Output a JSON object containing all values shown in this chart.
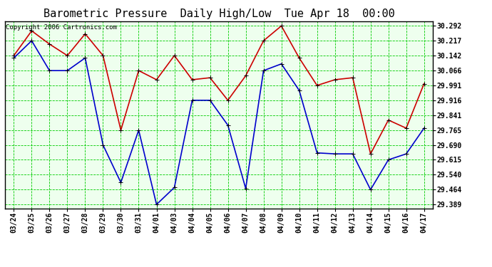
{
  "title": "Barometric Pressure  Daily High/Low  Tue Apr 18  00:00",
  "copyright": "Copyright 2006 Cartronics.com",
  "background_color": "#ffffff",
  "plot_bg_color": "#eeffee",
  "grid_color": "#00cc00",
  "dates": [
    "03/24",
    "03/25",
    "03/26",
    "03/27",
    "03/28",
    "03/29",
    "03/30",
    "03/31",
    "04/01",
    "04/03",
    "04/04",
    "04/05",
    "04/06",
    "04/07",
    "04/08",
    "04/09",
    "04/10",
    "04/11",
    "04/12",
    "04/13",
    "04/14",
    "04/15",
    "04/16",
    "04/17"
  ],
  "high_values": [
    30.142,
    30.267,
    30.2,
    30.142,
    30.252,
    30.142,
    29.765,
    30.066,
    30.02,
    30.142,
    30.02,
    30.03,
    29.916,
    30.04,
    30.217,
    30.292,
    30.13,
    29.991,
    30.02,
    30.03,
    29.645,
    29.816,
    29.775,
    30.0
  ],
  "low_values": [
    30.13,
    30.217,
    30.066,
    30.066,
    30.13,
    29.69,
    29.5,
    29.765,
    29.389,
    29.475,
    29.916,
    29.916,
    29.79,
    29.47,
    30.066,
    30.1,
    29.966,
    29.65,
    29.645,
    29.645,
    29.464,
    29.615,
    29.645,
    29.775
  ],
  "high_color": "#cc0000",
  "low_color": "#0000cc",
  "marker": "+",
  "marker_size": 5,
  "line_width": 1.2,
  "ylim_min": 29.37,
  "ylim_max": 30.315,
  "ytick_values": [
    29.389,
    29.464,
    29.54,
    29.615,
    29.69,
    29.765,
    29.841,
    29.916,
    29.991,
    30.066,
    30.142,
    30.217,
    30.292
  ],
  "title_fontsize": 11,
  "copyright_fontsize": 6.5,
  "tick_fontsize": 7,
  "fig_width": 6.9,
  "fig_height": 3.75,
  "dpi": 100
}
